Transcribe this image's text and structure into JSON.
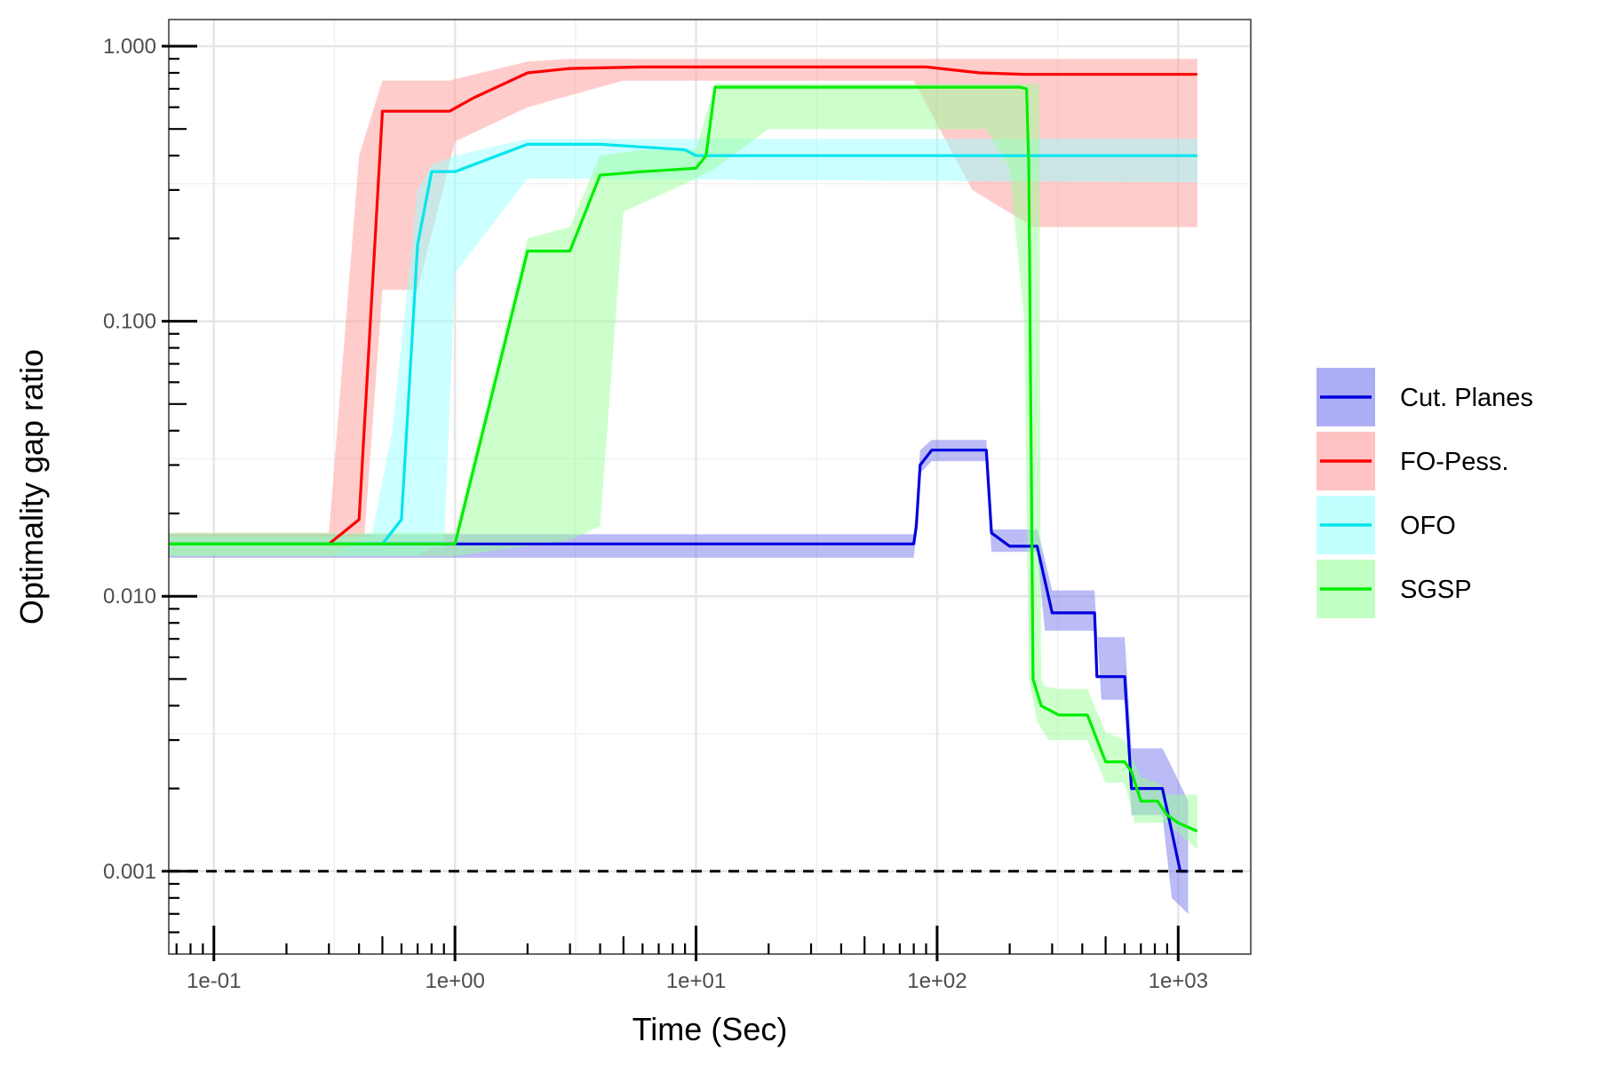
{
  "chart_data": {
    "type": "line",
    "title": "",
    "xlabel": "Time (Sec)",
    "ylabel": "Optimality gap ratio",
    "x_scale": "log10",
    "y_scale": "log10",
    "xlim": [
      0.065,
      2000
    ],
    "ylim": [
      0.0005,
      1.25
    ],
    "x_ticks": [
      0.1,
      1,
      10,
      100,
      1000
    ],
    "x_tick_labels": [
      "1e-01",
      "1e+00",
      "1e+01",
      "1e+02",
      "1e+03"
    ],
    "y_ticks": [
      0.001,
      0.01,
      0.1,
      1
    ],
    "y_tick_labels": [
      "0.001",
      "0.010",
      "0.100",
      "1.000"
    ],
    "grid": true,
    "legend_position": "right",
    "reference_line": {
      "y": 0.001,
      "style": "dashed",
      "color": "#000000"
    },
    "series": [
      {
        "name": "Cut. Planes",
        "color": "#0000dd",
        "fill": "#7777ee",
        "points": [
          [
            0.065,
            0.0155
          ],
          [
            80,
            0.0155
          ],
          [
            82,
            0.018
          ],
          [
            85,
            0.03
          ],
          [
            95,
            0.034
          ],
          [
            160,
            0.034
          ],
          [
            168,
            0.017
          ],
          [
            200,
            0.0152
          ],
          [
            260,
            0.0152
          ],
          [
            300,
            0.0087
          ],
          [
            450,
            0.0087
          ],
          [
            460,
            0.0051
          ],
          [
            600,
            0.0051
          ],
          [
            640,
            0.002
          ],
          [
            860,
            0.002
          ],
          [
            940,
            0.0014
          ],
          [
            1020,
            0.001
          ],
          [
            1100,
            0.001
          ]
        ],
        "upper": [
          [
            0.065,
            0.0168
          ],
          [
            80,
            0.0168
          ],
          [
            82,
            0.021
          ],
          [
            85,
            0.034
          ],
          [
            95,
            0.037
          ],
          [
            160,
            0.037
          ],
          [
            168,
            0.0175
          ],
          [
            260,
            0.0175
          ],
          [
            270,
            0.0155
          ],
          [
            300,
            0.0105
          ],
          [
            450,
            0.0105
          ],
          [
            460,
            0.0071
          ],
          [
            600,
            0.0071
          ],
          [
            640,
            0.0028
          ],
          [
            860,
            0.0028
          ],
          [
            940,
            0.0024
          ],
          [
            1100,
            0.0018
          ]
        ],
        "lower": [
          [
            0.065,
            0.0138
          ],
          [
            80,
            0.0138
          ],
          [
            82,
            0.017
          ],
          [
            85,
            0.028
          ],
          [
            95,
            0.031
          ],
          [
            160,
            0.031
          ],
          [
            168,
            0.0145
          ],
          [
            260,
            0.0145
          ],
          [
            280,
            0.0075
          ],
          [
            460,
            0.0075
          ],
          [
            480,
            0.0042
          ],
          [
            600,
            0.0042
          ],
          [
            640,
            0.0016
          ],
          [
            860,
            0.0016
          ],
          [
            940,
            0.0008
          ],
          [
            1100,
            0.0007
          ]
        ]
      },
      {
        "name": "FO-Pess.",
        "color": "#ff0000",
        "fill": "#ff9999",
        "points": [
          [
            0.065,
            0.0155
          ],
          [
            0.3,
            0.0155
          ],
          [
            0.4,
            0.019
          ],
          [
            0.5,
            0.58
          ],
          [
            0.95,
            0.58
          ],
          [
            1.2,
            0.65
          ],
          [
            2,
            0.8
          ],
          [
            3,
            0.83
          ],
          [
            6,
            0.84
          ],
          [
            90,
            0.84
          ],
          [
            150,
            0.8
          ],
          [
            230,
            0.79
          ],
          [
            1200,
            0.79
          ]
        ],
        "upper": [
          [
            0.065,
            0.017
          ],
          [
            0.3,
            0.017
          ],
          [
            0.4,
            0.4
          ],
          [
            0.5,
            0.75
          ],
          [
            0.95,
            0.75
          ],
          [
            2,
            0.88
          ],
          [
            3,
            0.9
          ],
          [
            180,
            0.9
          ],
          [
            1200,
            0.9
          ]
        ],
        "lower": [
          [
            0.065,
            0.014
          ],
          [
            0.3,
            0.014
          ],
          [
            0.42,
            0.016
          ],
          [
            0.5,
            0.13
          ],
          [
            0.7,
            0.13
          ],
          [
            1,
            0.45
          ],
          [
            2,
            0.6
          ],
          [
            5,
            0.75
          ],
          [
            80,
            0.75
          ],
          [
            140,
            0.3
          ],
          [
            250,
            0.22
          ],
          [
            1200,
            0.22
          ]
        ]
      },
      {
        "name": "OFO",
        "color": "#00e5ee",
        "fill": "#99ffff",
        "points": [
          [
            0.065,
            0.0155
          ],
          [
            0.5,
            0.0155
          ],
          [
            0.6,
            0.019
          ],
          [
            0.7,
            0.19
          ],
          [
            0.8,
            0.35
          ],
          [
            1,
            0.35
          ],
          [
            2,
            0.44
          ],
          [
            4,
            0.44
          ],
          [
            9,
            0.42
          ],
          [
            10,
            0.4
          ],
          [
            1200,
            0.4
          ]
        ],
        "upper": [
          [
            0.065,
            0.0165
          ],
          [
            0.45,
            0.0165
          ],
          [
            0.55,
            0.04
          ],
          [
            0.7,
            0.3
          ],
          [
            0.8,
            0.37
          ],
          [
            1,
            0.4
          ],
          [
            2,
            0.46
          ],
          [
            1200,
            0.46
          ]
        ],
        "lower": [
          [
            0.065,
            0.014
          ],
          [
            0.5,
            0.014
          ],
          [
            0.7,
            0.014
          ],
          [
            0.8,
            0.015
          ],
          [
            0.9,
            0.015
          ],
          [
            1,
            0.15
          ],
          [
            2,
            0.33
          ],
          [
            1200,
            0.32
          ]
        ]
      },
      {
        "name": "SGSP",
        "color": "#00ee00",
        "fill": "#99ff99",
        "points": [
          [
            0.065,
            0.0155
          ],
          [
            1,
            0.0155
          ],
          [
            2,
            0.18
          ],
          [
            3,
            0.18
          ],
          [
            4,
            0.34
          ],
          [
            6,
            0.35
          ],
          [
            10,
            0.36
          ],
          [
            11,
            0.4
          ],
          [
            12,
            0.71
          ],
          [
            220,
            0.71
          ],
          [
            235,
            0.7
          ],
          [
            240,
            0.37
          ],
          [
            250,
            0.005
          ],
          [
            270,
            0.004
          ],
          [
            320,
            0.0037
          ],
          [
            420,
            0.0037
          ],
          [
            500,
            0.0025
          ],
          [
            600,
            0.0025
          ],
          [
            640,
            0.0023
          ],
          [
            700,
            0.0018
          ],
          [
            820,
            0.0018
          ],
          [
            900,
            0.0016
          ],
          [
            1000,
            0.0015
          ],
          [
            1200,
            0.0014
          ]
        ],
        "upper": [
          [
            0.065,
            0.017
          ],
          [
            1,
            0.017
          ],
          [
            2,
            0.2
          ],
          [
            3,
            0.22
          ],
          [
            4,
            0.4
          ],
          [
            6,
            0.42
          ],
          [
            10,
            0.42
          ],
          [
            12,
            0.73
          ],
          [
            260,
            0.73
          ],
          [
            265,
            0.72
          ],
          [
            270,
            0.005
          ],
          [
            280,
            0.0047
          ],
          [
            320,
            0.0046
          ],
          [
            420,
            0.0046
          ],
          [
            500,
            0.0032
          ],
          [
            600,
            0.003
          ],
          [
            700,
            0.0022
          ],
          [
            820,
            0.0021
          ],
          [
            900,
            0.0019
          ],
          [
            1200,
            0.0019
          ]
        ],
        "lower": [
          [
            0.065,
            0.014
          ],
          [
            1,
            0.014
          ],
          [
            3,
            0.016
          ],
          [
            4,
            0.018
          ],
          [
            5,
            0.25
          ],
          [
            10,
            0.33
          ],
          [
            12,
            0.36
          ],
          [
            20,
            0.5
          ],
          [
            160,
            0.5
          ],
          [
            200,
            0.36
          ],
          [
            230,
            0.1
          ],
          [
            240,
            0.005
          ],
          [
            260,
            0.0035
          ],
          [
            290,
            0.003
          ],
          [
            420,
            0.003
          ],
          [
            500,
            0.0021
          ],
          [
            600,
            0.0021
          ],
          [
            660,
            0.0015
          ],
          [
            900,
            0.0015
          ],
          [
            1200,
            0.0012
          ]
        ]
      }
    ]
  }
}
